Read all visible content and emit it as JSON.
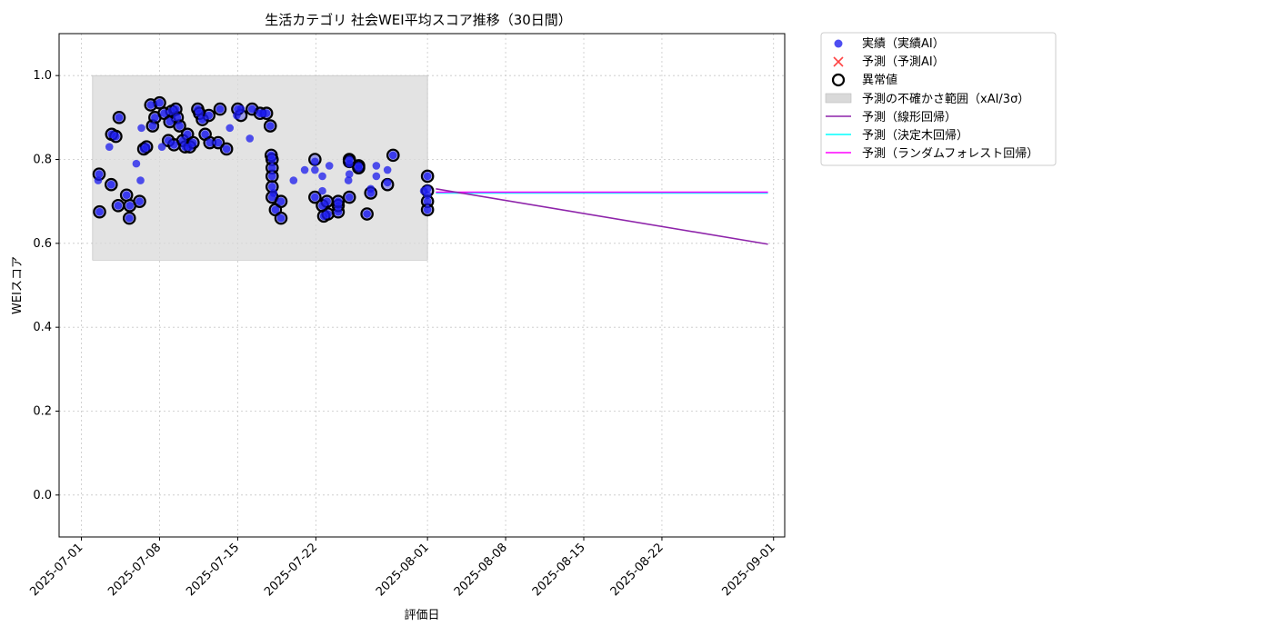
{
  "chart_data": {
    "type": "scatter",
    "title": "生活カテゴリ 社会WEI平均スコア推移（30日間）",
    "xlabel": "評価日",
    "ylabel": "WEIスコア",
    "ylim": [
      -0.1,
      1.1
    ],
    "xlim": [
      "2025-06-29",
      "2025-09-02"
    ],
    "y_ticks": [
      "0.0",
      "0.2",
      "0.4",
      "0.6",
      "0.8",
      "1.0"
    ],
    "x_ticks": [
      "2025-07-01",
      "2025-07-08",
      "2025-07-15",
      "2025-07-22",
      "2025-08-01",
      "2025-08-08",
      "2025-08-15",
      "2025-08-22",
      "2025-09-01"
    ],
    "grid": true,
    "legend_position": "outside-upper-right",
    "colors": {
      "actual": "#0000ee",
      "predicted_marker": "#ff3333",
      "anomaly_edge": "#000000",
      "band": "#d9d9d9",
      "linear": "#8e24aa",
      "tree": "#00ffff",
      "forest": "#ff00ff"
    },
    "legend": [
      {
        "key": "actual",
        "label": "実績（実績AI）"
      },
      {
        "key": "predicted",
        "label": "予測（予測AI）"
      },
      {
        "key": "anomaly",
        "label": "異常値"
      },
      {
        "key": "band",
        "label": "予測の不確かさ範囲（xAI/3σ）"
      },
      {
        "key": "linear",
        "label": "予測（線形回帰）"
      },
      {
        "key": "tree",
        "label": "予測（決定木回帰）"
      },
      {
        "key": "forest",
        "label": "予測（ランダムフォレスト回帰）"
      }
    ],
    "uncertainty_band": {
      "x_start": "2025-07-02",
      "x_end": "2025-08-01",
      "y_low": 0.56,
      "y_high": 1.0
    },
    "series": [
      {
        "name": "実績（実績AI）",
        "kind": "scatter",
        "points": [
          [
            "2025-07-02T12:00",
            0.75
          ],
          [
            "2025-07-02T14:00",
            0.765
          ],
          [
            "2025-07-02T15:00",
            0.675
          ],
          [
            "2025-07-03T12:00",
            0.83
          ],
          [
            "2025-07-03T17:00",
            0.86
          ],
          [
            "2025-07-03T16:00",
            0.74
          ],
          [
            "2025-07-04T02:00",
            0.855
          ],
          [
            "2025-07-04T07:00",
            0.69
          ],
          [
            "2025-07-04T09:00",
            0.9
          ],
          [
            "2025-07-05T01:00",
            0.715
          ],
          [
            "2025-07-05T07:00",
            0.66
          ],
          [
            "2025-07-05T08:00",
            0.69
          ],
          [
            "2025-07-05T22:00",
            0.79
          ],
          [
            "2025-07-06T07:00",
            0.75
          ],
          [
            "2025-07-06T09:00",
            0.875
          ],
          [
            "2025-07-06T05:00",
            0.7
          ],
          [
            "2025-07-06T14:00",
            0.825
          ],
          [
            "2025-07-06T20:00",
            0.83
          ],
          [
            "2025-07-07T05:00",
            0.93
          ],
          [
            "2025-07-07T09:00",
            0.88
          ],
          [
            "2025-07-07T14:00",
            0.9
          ],
          [
            "2025-07-08T00:00",
            0.935
          ],
          [
            "2025-07-08T05:00",
            0.83
          ],
          [
            "2025-07-08T10:00",
            0.91
          ],
          [
            "2025-07-08T19:00",
            0.845
          ],
          [
            "2025-07-08T22:00",
            0.89
          ],
          [
            "2025-07-09T02:00",
            0.915
          ],
          [
            "2025-07-09T07:00",
            0.835
          ],
          [
            "2025-07-09T11:00",
            0.92
          ],
          [
            "2025-07-09T14:00",
            0.9
          ],
          [
            "2025-07-09T19:00",
            0.88
          ],
          [
            "2025-07-10T02:00",
            0.845
          ],
          [
            "2025-07-10T07:00",
            0.83
          ],
          [
            "2025-07-10T12:00",
            0.86
          ],
          [
            "2025-07-10T17:00",
            0.83
          ],
          [
            "2025-07-11T00:00",
            0.84
          ],
          [
            "2025-07-11T10:00",
            0.92
          ],
          [
            "2025-07-11T14:00",
            0.91
          ],
          [
            "2025-07-11T20:00",
            0.895
          ],
          [
            "2025-07-12T02:00",
            0.86
          ],
          [
            "2025-07-12T10:00",
            0.905
          ],
          [
            "2025-07-12T12:00",
            0.84
          ],
          [
            "2025-07-13T10:00",
            0.92
          ],
          [
            "2025-07-13T06:00",
            0.84
          ],
          [
            "2025-07-14T00:00",
            0.825
          ],
          [
            "2025-07-14T07:00",
            0.875
          ],
          [
            "2025-07-14T22:00",
            0.905
          ],
          [
            "2025-07-15T00:00",
            0.92
          ],
          [
            "2025-07-15T07:00",
            0.92
          ],
          [
            "2025-07-16T02:00",
            0.85
          ],
          [
            "2025-07-16T07:00",
            0.92
          ],
          [
            "2025-07-17T00:00",
            0.91
          ],
          [
            "2025-07-17T05:00",
            0.91
          ],
          [
            "2025-07-17T14:00",
            0.91
          ],
          [
            "2025-07-17T22:00",
            0.88
          ],
          [
            "2025-07-18T00:00",
            0.81
          ],
          [
            "2025-07-18T02:00",
            0.8
          ],
          [
            "2025-07-18T02:00",
            0.78
          ],
          [
            "2025-07-18T02:00",
            0.76
          ],
          [
            "2025-07-18T02:00",
            0.735
          ],
          [
            "2025-07-18T02:00",
            0.71
          ],
          [
            "2025-07-18T05:00",
            0.72
          ],
          [
            "2025-07-18T09:00",
            0.68
          ],
          [
            "2025-07-18T21:00",
            0.7
          ],
          [
            "2025-07-18T21:00",
            0.66
          ],
          [
            "2025-07-20T00:00",
            0.75
          ],
          [
            "2025-07-21T00:00",
            0.775
          ],
          [
            "2025-07-21T22:00",
            0.795
          ],
          [
            "2025-07-21T22:00",
            0.775
          ],
          [
            "2025-07-21T22:00",
            0.71
          ],
          [
            "2025-07-22T14:00",
            0.76
          ],
          [
            "2025-07-22T14:00",
            0.725
          ],
          [
            "2025-07-22T14:00",
            0.69
          ],
          [
            "2025-07-22T17:00",
            0.665
          ],
          [
            "2025-07-23T00:00",
            0.7
          ],
          [
            "2025-07-23T02:00",
            0.67
          ],
          [
            "2025-07-23T05:00",
            0.785
          ],
          [
            "2025-07-24T00:00",
            0.675
          ],
          [
            "2025-07-24T00:00",
            0.69
          ],
          [
            "2025-07-24T00:00",
            0.7
          ],
          [
            "2025-07-24T22:00",
            0.75
          ],
          [
            "2025-07-25T00:00",
            0.8
          ],
          [
            "2025-07-25T00:00",
            0.79
          ],
          [
            "2025-07-25T00:00",
            0.765
          ],
          [
            "2025-07-25T00:00",
            0.71
          ],
          [
            "2025-07-25T20:00",
            0.785
          ],
          [
            "2025-07-25T20:00",
            0.78
          ],
          [
            "2025-07-26T14:00",
            0.67
          ],
          [
            "2025-07-26T22:00",
            0.72
          ],
          [
            "2025-07-26T22:00",
            0.73
          ],
          [
            "2025-07-27T10:00",
            0.785
          ],
          [
            "2025-07-27T10:00",
            0.76
          ],
          [
            "2025-07-28T10:00",
            0.775
          ],
          [
            "2025-07-28T10:00",
            0.745
          ],
          [
            "2025-07-28T22:00",
            0.81
          ],
          [
            "2025-08-01T00:00",
            0.76
          ],
          [
            "2025-08-01T00:00",
            0.73
          ],
          [
            "2025-08-01T00:00",
            0.715
          ],
          [
            "2025-08-01T00:00",
            0.7
          ],
          [
            "2025-08-01T00:00",
            0.68
          ],
          [
            "2025-07-31T16:00",
            0.725
          ]
        ]
      },
      {
        "name": "異常値",
        "kind": "scatter",
        "points": [
          [
            "2025-07-02T14:00",
            0.765
          ],
          [
            "2025-07-02T15:00",
            0.675
          ],
          [
            "2025-07-03T16:00",
            0.74
          ],
          [
            "2025-07-03T17:00",
            0.86
          ],
          [
            "2025-07-04T02:00",
            0.855
          ],
          [
            "2025-07-04T07:00",
            0.69
          ],
          [
            "2025-07-04T09:00",
            0.9
          ],
          [
            "2025-07-05T01:00",
            0.715
          ],
          [
            "2025-07-05T07:00",
            0.66
          ],
          [
            "2025-07-05T08:00",
            0.69
          ],
          [
            "2025-07-06T05:00",
            0.7
          ],
          [
            "2025-07-06T14:00",
            0.825
          ],
          [
            "2025-07-06T20:00",
            0.83
          ],
          [
            "2025-07-07T05:00",
            0.93
          ],
          [
            "2025-07-07T09:00",
            0.88
          ],
          [
            "2025-07-07T14:00",
            0.9
          ],
          [
            "2025-07-08T00:00",
            0.935
          ],
          [
            "2025-07-08T10:00",
            0.91
          ],
          [
            "2025-07-08T19:00",
            0.845
          ],
          [
            "2025-07-08T22:00",
            0.89
          ],
          [
            "2025-07-09T02:00",
            0.915
          ],
          [
            "2025-07-09T07:00",
            0.835
          ],
          [
            "2025-07-09T11:00",
            0.92
          ],
          [
            "2025-07-09T14:00",
            0.9
          ],
          [
            "2025-07-09T19:00",
            0.88
          ],
          [
            "2025-07-10T02:00",
            0.845
          ],
          [
            "2025-07-10T07:00",
            0.83
          ],
          [
            "2025-07-10T12:00",
            0.86
          ],
          [
            "2025-07-10T17:00",
            0.83
          ],
          [
            "2025-07-11T00:00",
            0.84
          ],
          [
            "2025-07-11T10:00",
            0.92
          ],
          [
            "2025-07-11T14:00",
            0.91
          ],
          [
            "2025-07-11T20:00",
            0.895
          ],
          [
            "2025-07-12T02:00",
            0.86
          ],
          [
            "2025-07-12T10:00",
            0.905
          ],
          [
            "2025-07-12T12:00",
            0.84
          ],
          [
            "2025-07-13T10:00",
            0.92
          ],
          [
            "2025-07-13T06:00",
            0.84
          ],
          [
            "2025-07-14T00:00",
            0.825
          ],
          [
            "2025-07-15T00:00",
            0.92
          ],
          [
            "2025-07-15T07:00",
            0.905
          ],
          [
            "2025-07-16T07:00",
            0.92
          ],
          [
            "2025-07-17T00:00",
            0.91
          ],
          [
            "2025-07-17T14:00",
            0.91
          ],
          [
            "2025-07-17T22:00",
            0.88
          ],
          [
            "2025-07-18T00:00",
            0.81
          ],
          [
            "2025-07-18T02:00",
            0.8
          ],
          [
            "2025-07-18T02:00",
            0.78
          ],
          [
            "2025-07-18T02:00",
            0.76
          ],
          [
            "2025-07-18T02:00",
            0.735
          ],
          [
            "2025-07-18T02:00",
            0.71
          ],
          [
            "2025-07-18T09:00",
            0.68
          ],
          [
            "2025-07-18T21:00",
            0.7
          ],
          [
            "2025-07-18T21:00",
            0.66
          ],
          [
            "2025-07-21T22:00",
            0.8
          ],
          [
            "2025-07-21T22:00",
            0.71
          ],
          [
            "2025-07-22T14:00",
            0.69
          ],
          [
            "2025-07-22T17:00",
            0.665
          ],
          [
            "2025-07-23T00:00",
            0.7
          ],
          [
            "2025-07-23T02:00",
            0.67
          ],
          [
            "2025-07-24T00:00",
            0.675
          ],
          [
            "2025-07-24T00:00",
            0.69
          ],
          [
            "2025-07-24T00:00",
            0.7
          ],
          [
            "2025-07-25T00:00",
            0.8
          ],
          [
            "2025-07-25T00:00",
            0.795
          ],
          [
            "2025-07-25T00:00",
            0.71
          ],
          [
            "2025-07-25T20:00",
            0.785
          ],
          [
            "2025-07-25T20:00",
            0.78
          ],
          [
            "2025-07-26T14:00",
            0.67
          ],
          [
            "2025-07-26T22:00",
            0.72
          ],
          [
            "2025-07-28T10:00",
            0.74
          ],
          [
            "2025-07-28T22:00",
            0.81
          ],
          [
            "2025-08-01T00:00",
            0.76
          ],
          [
            "2025-08-01T00:00",
            0.725
          ],
          [
            "2025-08-01T00:00",
            0.7
          ],
          [
            "2025-08-01T00:00",
            0.68
          ]
        ]
      },
      {
        "name": "予測（線形回帰）",
        "kind": "line",
        "points": [
          [
            "2025-08-01T18:00",
            0.73
          ],
          [
            "2025-08-31T12:00",
            0.598
          ]
        ]
      },
      {
        "name": "予測（決定木回帰）",
        "kind": "line",
        "points": [
          [
            "2025-08-01T18:00",
            0.72
          ],
          [
            "2025-08-31T12:00",
            0.72
          ]
        ]
      },
      {
        "name": "予測（ランダムフォレスト回帰）",
        "kind": "line",
        "points": [
          [
            "2025-08-01T18:00",
            0.722
          ],
          [
            "2025-08-31T12:00",
            0.722
          ]
        ]
      }
    ]
  }
}
